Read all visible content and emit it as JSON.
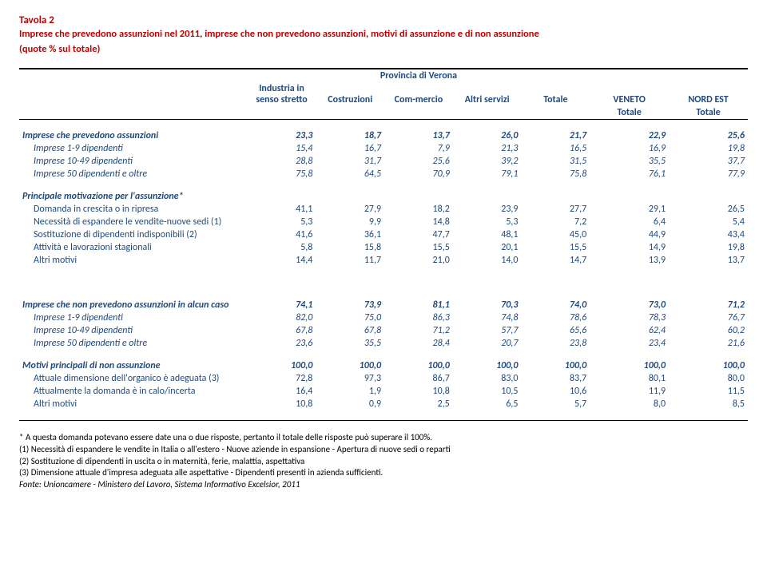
{
  "header": {
    "tavola": "Tavola 2",
    "line1": "Imprese che prevedono assunzioni nel 2011, imprese che non prevedono assunzioni, motivi di assunzione e di non assunzione",
    "line2": "(quote % sul totale)"
  },
  "columns": {
    "group": "Provincia di Verona",
    "c1": "Industria in senso stretto",
    "c2": "Costruzioni",
    "c3": "Com-mercio",
    "c4": "Altri servizi",
    "c5": "Totale",
    "c6": "VENETO",
    "c7": "NORD EST",
    "sub6": "Totale",
    "sub7": "Totale"
  },
  "rows1": [
    {
      "label": "Imprese che prevedono assunzioni",
      "v": [
        "23,3",
        "18,7",
        "13,7",
        "26,0",
        "21,7",
        "22,9",
        "25,6"
      ],
      "bold": true,
      "italic": true
    },
    {
      "label": "Imprese 1-9 dipendenti",
      "v": [
        "15,4",
        "16,7",
        "7,9",
        "21,3",
        "16,5",
        "16,9",
        "19,8"
      ],
      "indent": true,
      "italic": true
    },
    {
      "label": "Imprese 10-49 dipendenti",
      "v": [
        "28,8",
        "31,7",
        "25,6",
        "39,2",
        "31,5",
        "35,5",
        "37,7"
      ],
      "indent": true,
      "italic": true
    },
    {
      "label": "Imprese 50 dipendenti e oltre",
      "v": [
        "75,8",
        "64,5",
        "70,9",
        "79,1",
        "75,8",
        "76,1",
        "77,9"
      ],
      "indent": true,
      "italic": true
    }
  ],
  "rows2": [
    {
      "label": "Principale motivazione per l'assunzione*",
      "v": [
        "",
        "",
        "",
        "",
        "",
        "",
        ""
      ],
      "bold": true,
      "italic": true
    },
    {
      "label": "Domanda in crescita o in ripresa",
      "v": [
        "41,1",
        "27,9",
        "18,2",
        "23,9",
        "27,7",
        "29,1",
        "26,5"
      ],
      "indent": true
    },
    {
      "label": "Necessità di espandere le vendite-nuove sedi (1)",
      "v": [
        "5,3",
        "9,9",
        "14,8",
        "5,3",
        "7,2",
        "6,4",
        "5,4"
      ],
      "indent": true
    },
    {
      "label": "Sostituzione di dipendenti indisponibili (2)",
      "v": [
        "41,6",
        "36,1",
        "47,7",
        "48,1",
        "45,0",
        "44,9",
        "43,4"
      ],
      "indent": true
    },
    {
      "label": "Attività e lavorazioni stagionali",
      "v": [
        "5,8",
        "15,8",
        "15,5",
        "20,1",
        "15,5",
        "14,9",
        "19,8"
      ],
      "indent": true
    },
    {
      "label": "Altri motivi",
      "v": [
        "14,4",
        "11,7",
        "21,0",
        "14,0",
        "14,7",
        "13,9",
        "13,7"
      ],
      "indent": true
    }
  ],
  "rows3": [
    {
      "label": "Imprese che non prevedono assunzioni in alcun caso",
      "v": [
        "74,1",
        "73,9",
        "81,1",
        "70,3",
        "74,0",
        "73,0",
        "71,2"
      ],
      "bold": true,
      "italic": true
    },
    {
      "label": "Imprese 1-9 dipendenti",
      "v": [
        "82,0",
        "75,0",
        "86,3",
        "74,8",
        "78,6",
        "78,3",
        "76,7"
      ],
      "indent": true,
      "italic": true
    },
    {
      "label": "Imprese 10-49 dipendenti",
      "v": [
        "67,8",
        "67,8",
        "71,2",
        "57,7",
        "65,6",
        "62,4",
        "60,2"
      ],
      "indent": true,
      "italic": true
    },
    {
      "label": "Imprese 50 dipendenti e oltre",
      "v": [
        "23,6",
        "35,5",
        "28,4",
        "20,7",
        "23,8",
        "23,4",
        "21,6"
      ],
      "indent": true,
      "italic": true
    }
  ],
  "rows4": [
    {
      "label": "Motivi principali di non assunzione",
      "v": [
        "100,0",
        "100,0",
        "100,0",
        "100,0",
        "100,0",
        "100,0",
        "100,0"
      ],
      "bold": true,
      "italic": true
    },
    {
      "label": "Attuale dimensione dell'organico è adeguata (3)",
      "v": [
        "72,8",
        "97,3",
        "86,7",
        "83,0",
        "83,7",
        "80,1",
        "80,0"
      ],
      "indent": true
    },
    {
      "label": "Attualmente la domanda è in calo/incerta",
      "v": [
        "16,4",
        "1,9",
        "10,8",
        "10,5",
        "10,6",
        "11,9",
        "11,5"
      ],
      "indent": true
    },
    {
      "label": "Altri motivi",
      "v": [
        "10,8",
        "0,9",
        "2,5",
        "6,5",
        "5,7",
        "8,0",
        "8,5"
      ],
      "indent": true
    }
  ],
  "footnotes": {
    "f1": "* A questa domanda potevano essere date una o due risposte, pertanto il totale delle risposte può superare il 100%.",
    "f2": "(1) Necessità di espandere le vendite in Italia o all'estero - Nuove aziende in espansione - Apertura di nuove sedi o reparti",
    "f3": "(2) Sostituzione di dipendenti in uscita o in maternità, ferie, malattia, aspettativa",
    "f4": "(3) Dimensione attuale d'impresa adeguata alle aspettative - Dipendenti presenti in azienda sufficienti.",
    "src": "Fonte: Unioncamere - Ministero del Lavoro, Sistema Informativo Excelsior, 2011"
  },
  "style": {
    "header_color": "#c00000",
    "data_color": "#1f497d",
    "col_widths": {
      "label": 260,
      "num": 78
    }
  }
}
